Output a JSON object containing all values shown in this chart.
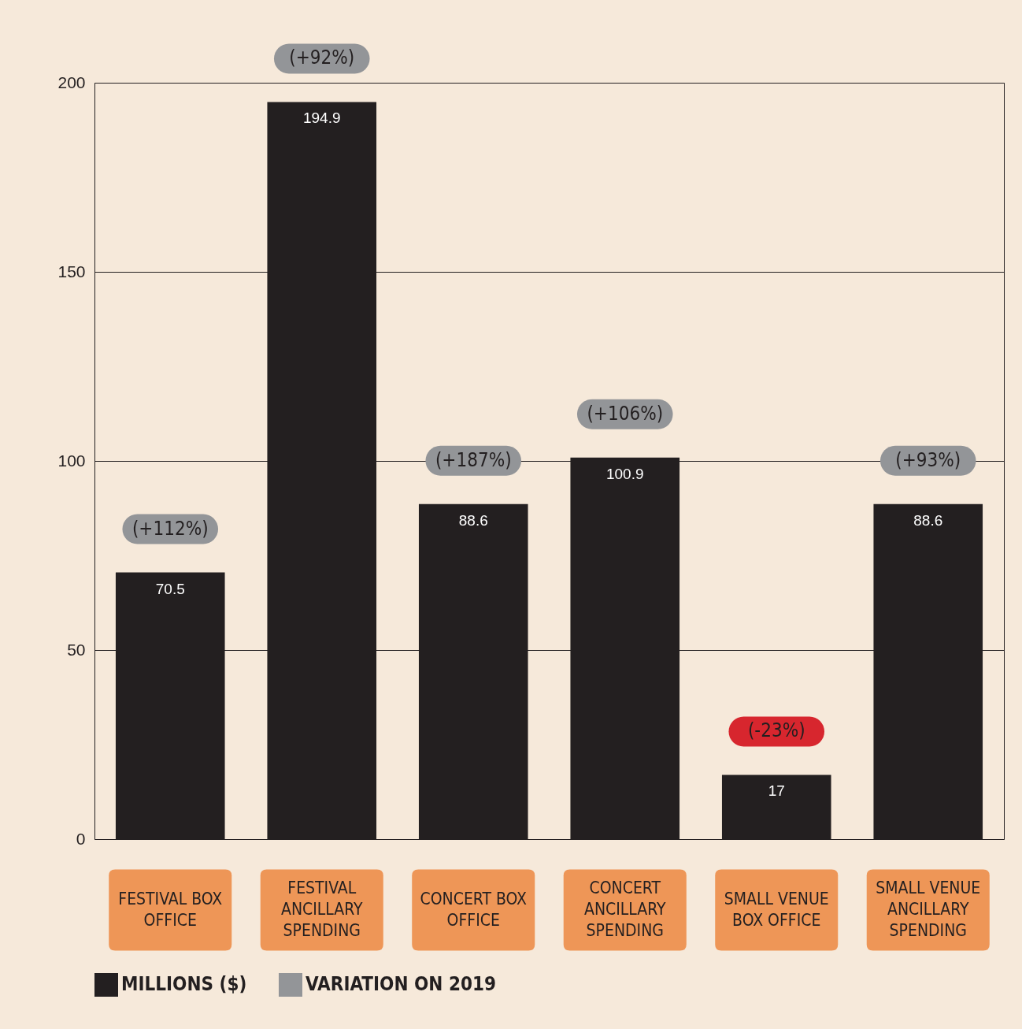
{
  "chart_data": {
    "type": "bar",
    "categories": [
      "FESTIVAL BOX OFFICE",
      "FESTIVAL ANCILLARY SPENDING",
      "CONCERT BOX OFFICE",
      "CONCERT ANCILLARY SPENDING",
      "SMALL VENUE BOX OFFICE",
      "SMALL VENUE ANCILLARY SPENDING"
    ],
    "series": [
      {
        "name": "MILLIONS ($)",
        "color": "#231f20",
        "values": [
          70.5,
          194.9,
          88.6,
          100.9,
          17,
          88.6
        ]
      },
      {
        "name": "VARIATION ON 2019",
        "color": "#939598",
        "colors": [
          "#939598",
          "#939598",
          "#939598",
          "#939598",
          "#d7262e",
          "#939598"
        ],
        "values": [
          null,
          null,
          null,
          null,
          null,
          null
        ],
        "value_labels": [
          "(+112%)",
          "(+92%)",
          "(+187%)",
          "(+106%)",
          "(-23%)",
          "(+93%)"
        ]
      }
    ],
    "data_labels": true,
    "ylim": [
      0,
      200
    ],
    "yticks": [
      0,
      50,
      100,
      150,
      200
    ],
    "grid": "y",
    "legend": "bottom"
  }
}
